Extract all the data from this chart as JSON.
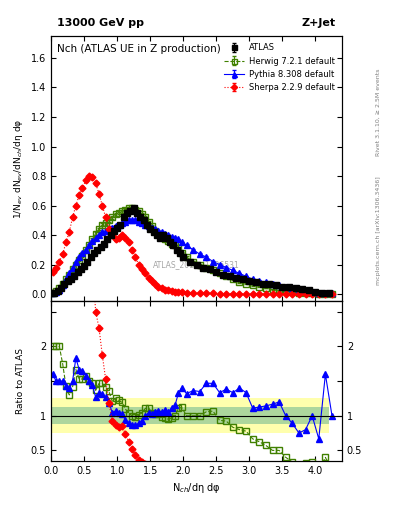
{
  "title_top": "13000 GeV pp",
  "title_right": "Z+Jet",
  "plot_title": "Nch (ATLAS UE in Z production)",
  "ylabel_main": "1/N$_{ev}$ dN$_{ev}$/dN$_{ch}$/dη dφ",
  "ylabel_ratio": "Ratio to ATLAS",
  "xlabel": "N$_{ch}$/dη dφ",
  "right_label_top": "Rivet 3.1.10, ≥ 2.5M events",
  "right_label_bottom": "mcplots.cern.ch [arXiv:1306.3436]",
  "watermark": "ATLAS_2019_I1736531",
  "atlas_x": [
    0.0,
    0.05,
    0.1,
    0.15,
    0.2,
    0.25,
    0.3,
    0.35,
    0.4,
    0.45,
    0.5,
    0.55,
    0.6,
    0.65,
    0.7,
    0.75,
    0.8,
    0.85,
    0.9,
    0.95,
    1.0,
    1.05,
    1.1,
    1.15,
    1.2,
    1.25,
    1.3,
    1.35,
    1.4,
    1.45,
    1.5,
    1.55,
    1.6,
    1.65,
    1.7,
    1.75,
    1.8,
    1.85,
    1.9,
    1.95,
    2.0,
    2.1,
    2.2,
    2.3,
    2.4,
    2.5,
    2.6,
    2.7,
    2.8,
    2.9,
    3.0,
    3.1,
    3.2,
    3.3,
    3.4,
    3.5,
    3.6,
    3.7,
    3.8,
    3.9,
    4.0,
    4.1,
    4.2
  ],
  "atlas_y": [
    0.005,
    0.01,
    0.02,
    0.04,
    0.07,
    0.09,
    0.1,
    0.12,
    0.15,
    0.17,
    0.19,
    0.22,
    0.25,
    0.28,
    0.3,
    0.32,
    0.34,
    0.37,
    0.4,
    0.43,
    0.45,
    0.47,
    0.52,
    0.55,
    0.56,
    0.58,
    0.55,
    0.52,
    0.5,
    0.47,
    0.44,
    0.42,
    0.4,
    0.38,
    0.4,
    0.38,
    0.35,
    0.33,
    0.3,
    0.28,
    0.25,
    0.22,
    0.2,
    0.18,
    0.17,
    0.15,
    0.13,
    0.12,
    0.11,
    0.1,
    0.09,
    0.08,
    0.07,
    0.065,
    0.06,
    0.05,
    0.045,
    0.04,
    0.035,
    0.025,
    0.015,
    0.01,
    0.005
  ],
  "atlas_yerr": [
    0.002,
    0.003,
    0.003,
    0.004,
    0.005,
    0.005,
    0.005,
    0.005,
    0.006,
    0.006,
    0.007,
    0.007,
    0.008,
    0.008,
    0.009,
    0.009,
    0.009,
    0.01,
    0.01,
    0.01,
    0.01,
    0.01,
    0.01,
    0.01,
    0.01,
    0.01,
    0.01,
    0.01,
    0.01,
    0.01,
    0.01,
    0.01,
    0.01,
    0.01,
    0.01,
    0.01,
    0.01,
    0.01,
    0.01,
    0.01,
    0.01,
    0.01,
    0.01,
    0.01,
    0.01,
    0.01,
    0.01,
    0.008,
    0.008,
    0.007,
    0.007,
    0.006,
    0.006,
    0.005,
    0.005,
    0.004,
    0.004,
    0.003,
    0.003,
    0.002,
    0.002,
    0.001,
    0.001
  ],
  "herwig_x": [
    0.025,
    0.075,
    0.125,
    0.175,
    0.225,
    0.275,
    0.325,
    0.375,
    0.425,
    0.475,
    0.525,
    0.575,
    0.625,
    0.675,
    0.725,
    0.775,
    0.825,
    0.875,
    0.925,
    0.975,
    1.025,
    1.075,
    1.125,
    1.175,
    1.225,
    1.275,
    1.325,
    1.375,
    1.425,
    1.475,
    1.525,
    1.575,
    1.625,
    1.675,
    1.725,
    1.775,
    1.825,
    1.875,
    1.925,
    1.975,
    2.05,
    2.15,
    2.25,
    2.35,
    2.45,
    2.55,
    2.65,
    2.75,
    2.85,
    2.95,
    3.05,
    3.15,
    3.25,
    3.35,
    3.45,
    3.55,
    3.65,
    3.75,
    3.85,
    3.95,
    4.05,
    4.15,
    4.25
  ],
  "herwig_y": [
    0.01,
    0.02,
    0.04,
    0.07,
    0.1,
    0.13,
    0.17,
    0.2,
    0.23,
    0.26,
    0.3,
    0.33,
    0.37,
    0.41,
    0.44,
    0.47,
    0.48,
    0.5,
    0.52,
    0.54,
    0.55,
    0.56,
    0.57,
    0.58,
    0.58,
    0.57,
    0.56,
    0.54,
    0.52,
    0.49,
    0.46,
    0.43,
    0.41,
    0.39,
    0.37,
    0.36,
    0.34,
    0.33,
    0.31,
    0.28,
    0.25,
    0.22,
    0.2,
    0.18,
    0.16,
    0.14,
    0.12,
    0.1,
    0.08,
    0.07,
    0.06,
    0.05,
    0.04,
    0.03,
    0.025,
    0.02,
    0.015,
    0.01,
    0.008,
    0.005,
    0.003,
    0.002,
    0.001
  ],
  "herwig_yerr": [
    0.001,
    0.002,
    0.003,
    0.004,
    0.005,
    0.005,
    0.006,
    0.006,
    0.007,
    0.007,
    0.008,
    0.008,
    0.009,
    0.009,
    0.009,
    0.009,
    0.009,
    0.009,
    0.009,
    0.009,
    0.009,
    0.009,
    0.009,
    0.009,
    0.009,
    0.009,
    0.009,
    0.009,
    0.008,
    0.008,
    0.008,
    0.007,
    0.007,
    0.007,
    0.007,
    0.006,
    0.006,
    0.006,
    0.006,
    0.005,
    0.005,
    0.005,
    0.005,
    0.004,
    0.004,
    0.004,
    0.003,
    0.003,
    0.003,
    0.002,
    0.002,
    0.002,
    0.002,
    0.001,
    0.001,
    0.001,
    0.001,
    0.001,
    0.001,
    0.001,
    0.001,
    0.001,
    0.001
  ],
  "pythia_x": [
    0.025,
    0.075,
    0.125,
    0.175,
    0.225,
    0.275,
    0.325,
    0.375,
    0.425,
    0.475,
    0.525,
    0.575,
    0.625,
    0.675,
    0.725,
    0.775,
    0.825,
    0.875,
    0.925,
    0.975,
    1.025,
    1.075,
    1.125,
    1.175,
    1.225,
    1.275,
    1.325,
    1.375,
    1.425,
    1.475,
    1.525,
    1.575,
    1.625,
    1.675,
    1.725,
    1.775,
    1.825,
    1.875,
    1.925,
    1.975,
    2.05,
    2.15,
    2.25,
    2.35,
    2.45,
    2.55,
    2.65,
    2.75,
    2.85,
    2.95,
    3.05,
    3.15,
    3.25,
    3.35,
    3.45,
    3.55,
    3.65,
    3.75,
    3.85,
    3.95,
    4.05,
    4.15,
    4.25
  ],
  "pythia_y": [
    0.008,
    0.015,
    0.03,
    0.06,
    0.1,
    0.14,
    0.18,
    0.22,
    0.25,
    0.28,
    0.3,
    0.33,
    0.36,
    0.38,
    0.4,
    0.42,
    0.43,
    0.44,
    0.45,
    0.46,
    0.47,
    0.48,
    0.49,
    0.5,
    0.5,
    0.5,
    0.49,
    0.48,
    0.47,
    0.46,
    0.45,
    0.44,
    0.43,
    0.42,
    0.41,
    0.4,
    0.39,
    0.38,
    0.37,
    0.35,
    0.33,
    0.3,
    0.27,
    0.25,
    0.22,
    0.2,
    0.18,
    0.16,
    0.14,
    0.12,
    0.1,
    0.09,
    0.08,
    0.07,
    0.06,
    0.05,
    0.04,
    0.03,
    0.02,
    0.015,
    0.01,
    0.008,
    0.005
  ],
  "pythia_yerr": [
    0.001,
    0.002,
    0.002,
    0.003,
    0.004,
    0.005,
    0.005,
    0.006,
    0.006,
    0.007,
    0.007,
    0.007,
    0.008,
    0.008,
    0.008,
    0.008,
    0.008,
    0.008,
    0.008,
    0.008,
    0.008,
    0.008,
    0.008,
    0.008,
    0.008,
    0.008,
    0.008,
    0.008,
    0.008,
    0.007,
    0.007,
    0.007,
    0.007,
    0.007,
    0.007,
    0.007,
    0.006,
    0.006,
    0.006,
    0.006,
    0.006,
    0.005,
    0.005,
    0.005,
    0.005,
    0.004,
    0.004,
    0.004,
    0.003,
    0.003,
    0.003,
    0.003,
    0.002,
    0.002,
    0.002,
    0.002,
    0.001,
    0.001,
    0.001,
    0.001,
    0.001,
    0.001,
    0.001
  ],
  "sherpa_x": [
    0.025,
    0.075,
    0.125,
    0.175,
    0.225,
    0.275,
    0.325,
    0.375,
    0.425,
    0.475,
    0.525,
    0.575,
    0.625,
    0.675,
    0.725,
    0.775,
    0.825,
    0.875,
    0.925,
    0.975,
    1.025,
    1.075,
    1.125,
    1.175,
    1.225,
    1.275,
    1.325,
    1.375,
    1.425,
    1.475,
    1.525,
    1.575,
    1.625,
    1.675,
    1.725,
    1.775,
    1.825,
    1.875,
    1.925,
    1.975,
    2.05,
    2.15,
    2.25,
    2.35,
    2.45,
    2.55,
    2.65,
    2.75,
    2.85,
    2.95,
    3.05,
    3.15,
    3.25,
    3.35,
    3.45,
    3.55,
    3.65,
    3.75,
    3.85,
    3.95,
    4.05,
    4.15,
    4.25
  ],
  "sherpa_y": [
    0.15,
    0.18,
    0.22,
    0.27,
    0.35,
    0.42,
    0.52,
    0.6,
    0.67,
    0.72,
    0.77,
    0.8,
    0.79,
    0.75,
    0.68,
    0.6,
    0.52,
    0.44,
    0.4,
    0.37,
    0.38,
    0.4,
    0.38,
    0.35,
    0.3,
    0.25,
    0.2,
    0.17,
    0.14,
    0.11,
    0.09,
    0.07,
    0.05,
    0.04,
    0.03,
    0.025,
    0.02,
    0.017,
    0.015,
    0.012,
    0.01,
    0.008,
    0.006,
    0.005,
    0.004,
    0.003,
    0.003,
    0.002,
    0.002,
    0.001,
    0.001,
    0.001,
    0.001,
    0.001,
    0.001,
    0.001,
    0.001,
    0.001,
    0.001,
    0.001,
    0.001,
    0.001,
    0.001
  ],
  "sherpa_yerr": [
    0.003,
    0.004,
    0.004,
    0.005,
    0.006,
    0.007,
    0.008,
    0.009,
    0.009,
    0.01,
    0.01,
    0.01,
    0.01,
    0.01,
    0.01,
    0.009,
    0.009,
    0.009,
    0.008,
    0.008,
    0.008,
    0.008,
    0.008,
    0.007,
    0.007,
    0.006,
    0.006,
    0.005,
    0.005,
    0.004,
    0.004,
    0.003,
    0.003,
    0.003,
    0.002,
    0.002,
    0.002,
    0.002,
    0.001,
    0.001,
    0.001,
    0.001,
    0.001,
    0.001,
    0.001,
    0.001,
    0.001,
    0.001,
    0.001,
    0.001,
    0.001,
    0.001,
    0.001,
    0.001,
    0.001,
    0.001,
    0.001,
    0.001,
    0.001,
    0.001,
    0.001,
    0.001,
    0.001
  ],
  "xlim": [
    0,
    4.4
  ],
  "ylim_main": [
    -0.05,
    1.75
  ],
  "ylim_ratio": [
    0.35,
    2.5
  ],
  "colors": {
    "atlas": "#000000",
    "herwig": "#408000",
    "pythia": "#0000ff",
    "sherpa": "#ff0000"
  },
  "band_yellow": "#ffff99",
  "band_green": "#99cc99"
}
